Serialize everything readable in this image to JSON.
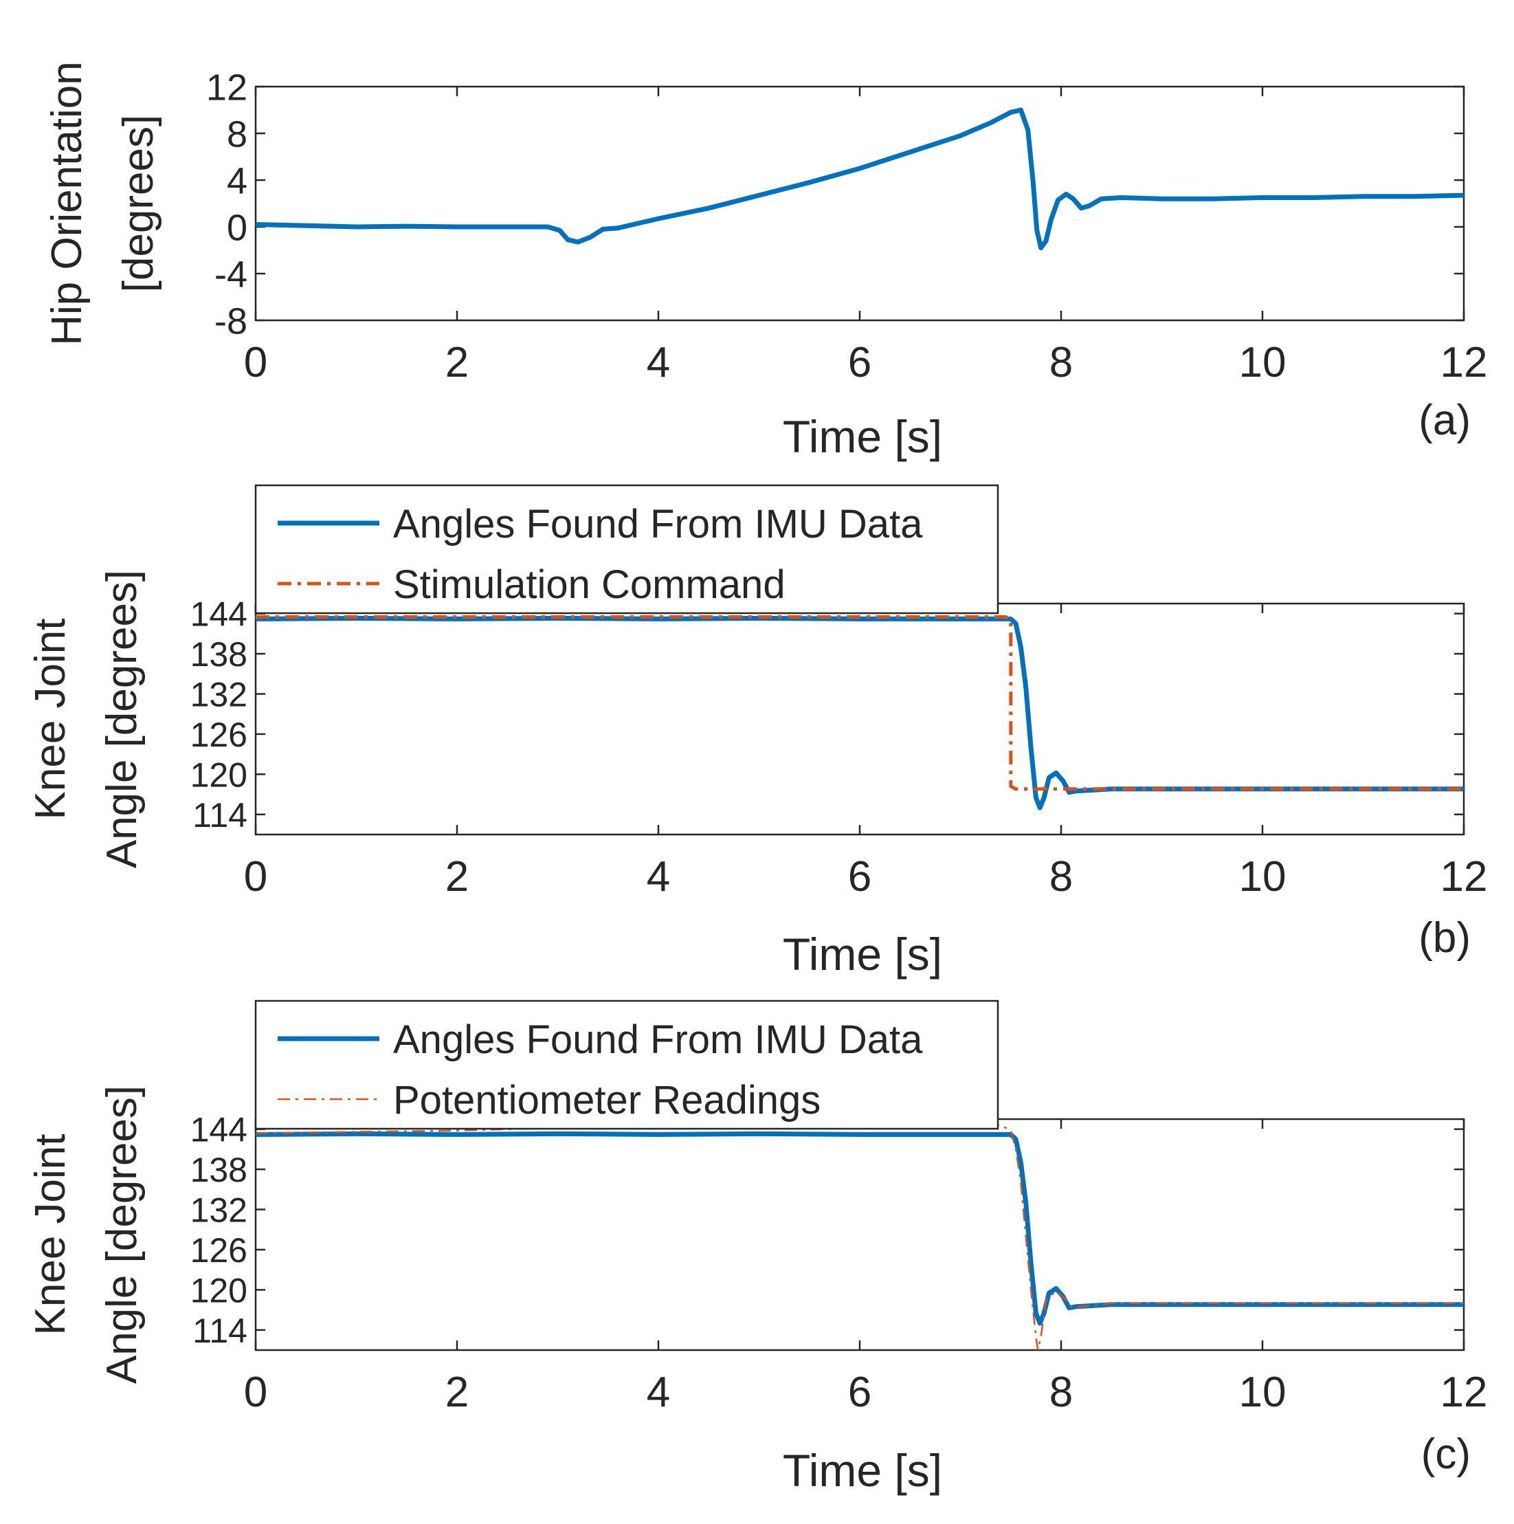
{
  "chart_data": [
    {
      "type": "line",
      "panel_label": "(a)",
      "xlabel": "Time [s]",
      "ylabel_lines": [
        "Hip Orientation",
        "[degrees]"
      ],
      "xlim": [
        0,
        12
      ],
      "ylim": [
        -8,
        12
      ],
      "xticks": [
        0,
        2,
        4,
        6,
        8,
        10,
        12
      ],
      "xtick_labels": [
        "0",
        "2",
        "4",
        "6",
        "8",
        "10",
        "12"
      ],
      "yticks": [
        12,
        8,
        4,
        0,
        -4,
        -8
      ],
      "ytick_labels": [
        "12",
        "8",
        "4",
        "0",
        "-4",
        "-8"
      ],
      "legend": [],
      "series": [
        {
          "name": "Hip Orientation",
          "color": "#0072BD",
          "style": "solid",
          "points": [
            [
              0,
              0.2
            ],
            [
              0.5,
              0.1
            ],
            [
              1,
              0
            ],
            [
              1.5,
              0.05
            ],
            [
              2,
              0
            ],
            [
              2.5,
              0
            ],
            [
              2.9,
              0
            ],
            [
              3.02,
              -0.3
            ],
            [
              3.1,
              -1.1
            ],
            [
              3.2,
              -1.3
            ],
            [
              3.32,
              -0.9
            ],
            [
              3.45,
              -0.2
            ],
            [
              3.6,
              -0.1
            ],
            [
              3.8,
              0.3
            ],
            [
              4,
              0.7
            ],
            [
              4.5,
              1.6
            ],
            [
              5,
              2.7
            ],
            [
              5.5,
              3.8
            ],
            [
              6,
              5
            ],
            [
              6.5,
              6.4
            ],
            [
              7,
              7.8
            ],
            [
              7.3,
              8.9
            ],
            [
              7.5,
              9.8
            ],
            [
              7.6,
              10
            ],
            [
              7.67,
              8.3
            ],
            [
              7.72,
              4
            ],
            [
              7.76,
              -0.3
            ],
            [
              7.8,
              -1.8
            ],
            [
              7.85,
              -1.2
            ],
            [
              7.9,
              0.6
            ],
            [
              7.97,
              2.3
            ],
            [
              8.05,
              2.8
            ],
            [
              8.12,
              2.4
            ],
            [
              8.2,
              1.6
            ],
            [
              8.28,
              1.8
            ],
            [
              8.4,
              2.4
            ],
            [
              8.6,
              2.5
            ],
            [
              9,
              2.4
            ],
            [
              9.5,
              2.4
            ],
            [
              10,
              2.5
            ],
            [
              10.5,
              2.5
            ],
            [
              11,
              2.6
            ],
            [
              11.5,
              2.6
            ],
            [
              12,
              2.7
            ]
          ]
        }
      ]
    },
    {
      "type": "line",
      "panel_label": "(b)",
      "xlabel": "Time [s]",
      "ylabel_lines": [
        "Knee Joint",
        "Angle [degrees]"
      ],
      "xlim": [
        0,
        12
      ],
      "ylim": [
        111,
        145.5
      ],
      "xticks": [
        0,
        2,
        4,
        6,
        8,
        10,
        12
      ],
      "xtick_labels": [
        "0",
        "2",
        "4",
        "6",
        "8",
        "10",
        "12"
      ],
      "yticks": [
        144,
        138,
        132,
        126,
        120,
        114
      ],
      "ytick_labels": [
        "144",
        "138",
        "132",
        "126",
        "120",
        "114"
      ],
      "legend": [
        "Angles Found From IMU Data",
        "Stimulation Command"
      ],
      "series": [
        {
          "name": "Angles Found From IMU Data",
          "color": "#0072BD",
          "style": "solid",
          "points": [
            [
              0,
              143.2
            ],
            [
              1,
              143.3
            ],
            [
              2,
              143.2
            ],
            [
              3,
              143.3
            ],
            [
              4,
              143.2
            ],
            [
              5,
              143.3
            ],
            [
              6,
              143.2
            ],
            [
              7,
              143.2
            ],
            [
              7.5,
              143.2
            ],
            [
              7.55,
              142.5
            ],
            [
              7.6,
              139
            ],
            [
              7.65,
              133
            ],
            [
              7.7,
              124
            ],
            [
              7.75,
              116.5
            ],
            [
              7.79,
              115
            ],
            [
              7.83,
              116.5
            ],
            [
              7.88,
              119.5
            ],
            [
              7.95,
              120.2
            ],
            [
              8.02,
              119
            ],
            [
              8.08,
              117.3
            ],
            [
              8.15,
              117.5
            ],
            [
              8.5,
              117.8
            ],
            [
              9,
              117.8
            ],
            [
              10,
              117.8
            ],
            [
              11,
              117.8
            ],
            [
              12,
              117.8
            ]
          ]
        },
        {
          "name": "Stimulation Command",
          "color": "#D95319",
          "style": "dashdot-thick",
          "points": [
            [
              0,
              143.5
            ],
            [
              1,
              143.5
            ],
            [
              2,
              143.5
            ],
            [
              3,
              143.5
            ],
            [
              4,
              143.5
            ],
            [
              5,
              143.5
            ],
            [
              6,
              143.5
            ],
            [
              7,
              143.5
            ],
            [
              7.45,
              143.5
            ],
            [
              7.5,
              143
            ],
            [
              7.5,
              118.2
            ],
            [
              7.55,
              117.8
            ],
            [
              8,
              117.8
            ],
            [
              9,
              117.8
            ],
            [
              10,
              117.8
            ],
            [
              11,
              117.8
            ],
            [
              12,
              117.8
            ]
          ]
        }
      ]
    },
    {
      "type": "line",
      "panel_label": "(c)",
      "xlabel": "Time [s]",
      "ylabel_lines": [
        "Knee Joint",
        "Angle [degrees]"
      ],
      "xlim": [
        0,
        12
      ],
      "ylim": [
        111,
        145.5
      ],
      "xticks": [
        0,
        2,
        4,
        6,
        8,
        10,
        12
      ],
      "xtick_labels": [
        "0",
        "2",
        "4",
        "6",
        "8",
        "10",
        "12"
      ],
      "yticks": [
        144,
        138,
        132,
        126,
        120,
        114
      ],
      "ytick_labels": [
        "144",
        "138",
        "132",
        "126",
        "120",
        "114"
      ],
      "legend": [
        "Angles Found From IMU Data",
        "Potentiometer Readings"
      ],
      "series": [
        {
          "name": "Angles Found From IMU Data",
          "color": "#0072BD",
          "style": "solid",
          "points": [
            [
              0,
              143.2
            ],
            [
              1,
              143.3
            ],
            [
              2,
              143.2
            ],
            [
              3,
              143.3
            ],
            [
              4,
              143.2
            ],
            [
              5,
              143.3
            ],
            [
              6,
              143.2
            ],
            [
              7,
              143.2
            ],
            [
              7.5,
              143.2
            ],
            [
              7.55,
              142.5
            ],
            [
              7.6,
              139
            ],
            [
              7.65,
              133
            ],
            [
              7.7,
              124
            ],
            [
              7.75,
              116.5
            ],
            [
              7.79,
              115
            ],
            [
              7.83,
              116.5
            ],
            [
              7.88,
              119.5
            ],
            [
              7.95,
              120.2
            ],
            [
              8.02,
              119
            ],
            [
              8.08,
              117.3
            ],
            [
              8.15,
              117.5
            ],
            [
              8.5,
              117.8
            ],
            [
              9,
              117.8
            ],
            [
              10,
              117.8
            ],
            [
              11,
              117.8
            ],
            [
              12,
              117.8
            ]
          ]
        },
        {
          "name": "Potentiometer Readings",
          "color": "#D95319",
          "style": "dashdot-thin",
          "points": [
            [
              0,
              143.4
            ],
            [
              1,
              143.6
            ],
            [
              2,
              143.8
            ],
            [
              3,
              144.2
            ],
            [
              4,
              144.3
            ],
            [
              5,
              144.4
            ],
            [
              6,
              144.4
            ],
            [
              7,
              144.5
            ],
            [
              7.4,
              144.6
            ],
            [
              7.5,
              143.8
            ],
            [
              7.55,
              141
            ],
            [
              7.6,
              136
            ],
            [
              7.65,
              128
            ],
            [
              7.7,
              120
            ],
            [
              7.75,
              113
            ],
            [
              7.77,
              111
            ],
            [
              7.8,
              113
            ],
            [
              7.85,
              118.5
            ],
            [
              7.95,
              119.8
            ],
            [
              8.05,
              118.5
            ],
            [
              8.12,
              117.2
            ],
            [
              8.2,
              117.5
            ],
            [
              8.5,
              118
            ],
            [
              9,
              118
            ],
            [
              10,
              118
            ],
            [
              11,
              118
            ],
            [
              12,
              118
            ]
          ]
        }
      ]
    }
  ]
}
